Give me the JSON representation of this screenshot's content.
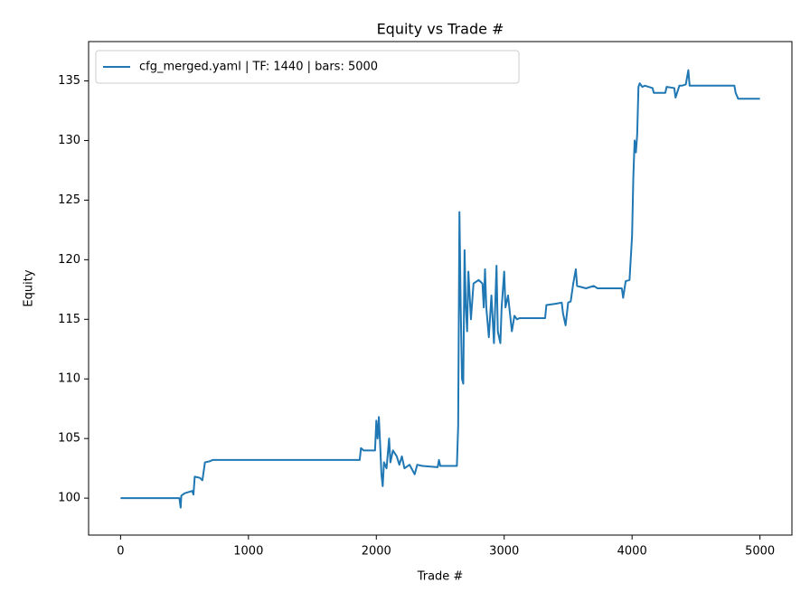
{
  "chart_data": {
    "type": "line",
    "title": "Equity vs Trade #",
    "xlabel": "Trade #",
    "ylabel": "Equity",
    "legend": "upper left",
    "xlim": [
      -250,
      5250
    ],
    "ylim": [
      96.9,
      138.3
    ],
    "xticks": [
      0,
      1000,
      2000,
      3000,
      4000,
      5000
    ],
    "yticks": [
      100,
      105,
      110,
      115,
      120,
      125,
      130,
      135
    ],
    "x": [
      0,
      460,
      470,
      475,
      500,
      560,
      570,
      580,
      620,
      640,
      660,
      700,
      720,
      1870,
      1880,
      1900,
      1990,
      2000,
      2010,
      2020,
      2030,
      2040,
      2050,
      2060,
      2080,
      2100,
      2110,
      2130,
      2160,
      2180,
      2200,
      2220,
      2260,
      2300,
      2320,
      2360,
      2480,
      2490,
      2500,
      2630,
      2640,
      2650,
      2660,
      2670,
      2680,
      2690,
      2700,
      2710,
      2720,
      2740,
      2760,
      2800,
      2830,
      2840,
      2850,
      2860,
      2880,
      2900,
      2920,
      2940,
      2950,
      2970,
      2980,
      3000,
      3010,
      3030,
      3060,
      3080,
      3100,
      3120,
      3320,
      3330,
      3400,
      3450,
      3460,
      3480,
      3500,
      3520,
      3540,
      3560,
      3570,
      3640,
      3700,
      3730,
      3920,
      3930,
      3950,
      3980,
      4000,
      4010,
      4020,
      4030,
      4040,
      4050,
      4060,
      4080,
      4100,
      4160,
      4170,
      4260,
      4270,
      4330,
      4340,
      4370,
      4390,
      4420,
      4440,
      4450,
      4800,
      4810,
      4830,
      5000
    ],
    "series": [
      {
        "name": "cfg_merged.yaml | TF: 1440 | bars: 5000",
        "color": "#1f77b4",
        "values": [
          100,
          100,
          99.2,
          100.2,
          100.4,
          100.6,
          100.3,
          101.8,
          101.7,
          101.5,
          103,
          103.1,
          103.2,
          103.2,
          104.2,
          104,
          104,
          106.5,
          105,
          106.8,
          104.5,
          102,
          101,
          103,
          102.5,
          105,
          103,
          104,
          103.5,
          102.8,
          103.5,
          102.5,
          102.8,
          102,
          102.8,
          102.7,
          102.6,
          103.2,
          102.7,
          102.7,
          106,
          124,
          116,
          110,
          109.6,
          120.8,
          116,
          114,
          119,
          115,
          118,
          118.3,
          118,
          116,
          119.2,
          116,
          113.5,
          117,
          113,
          119.5,
          114,
          113,
          116,
          119,
          116,
          117,
          114,
          115.3,
          115,
          115.1,
          115.1,
          116.2,
          116.3,
          116.4,
          115.5,
          114.5,
          116.4,
          116.5,
          118,
          119.2,
          117.8,
          117.6,
          117.8,
          117.6,
          117.6,
          116.8,
          118.2,
          118.3,
          122,
          127,
          130,
          129,
          130.5,
          134.5,
          134.8,
          134.5,
          134.6,
          134.4,
          134,
          134,
          134.5,
          134.4,
          133.6,
          134.6,
          134.6,
          134.7,
          135.9,
          134.6,
          134.6,
          134,
          133.5,
          133.5
        ]
      }
    ]
  }
}
